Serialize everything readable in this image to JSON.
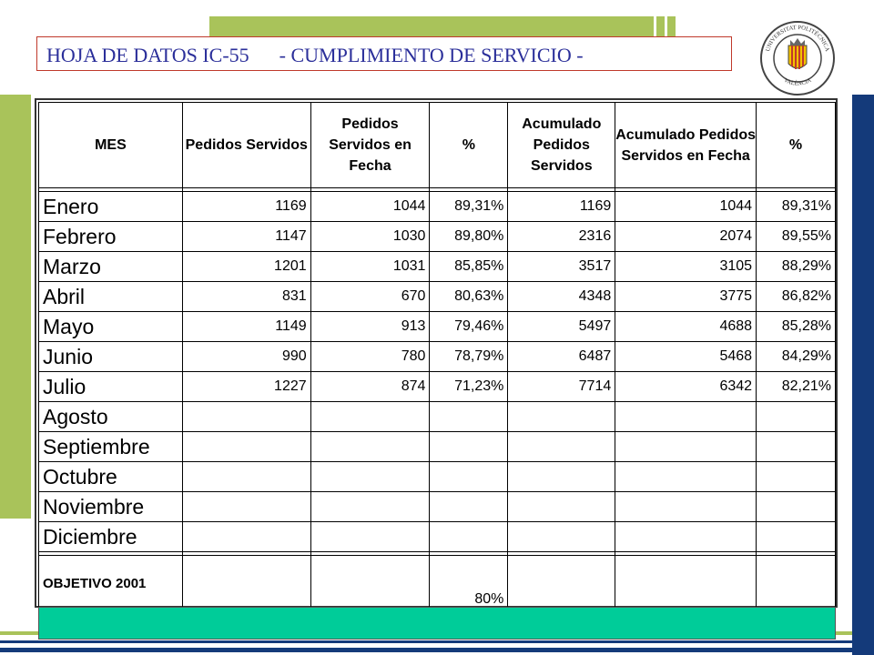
{
  "title": "HOJA DE DATOS IC-55      - CUMPLIMIENTO DE SERVICIO -",
  "logo": {
    "icon": "university-seal-icon",
    "text_top": "UNIVERSITAT POLITÈCNICA",
    "text_bottom": "VALÈNCIA"
  },
  "colors": {
    "accent_green": "#a9c35a",
    "navy": "#143a7a",
    "footer_teal": "#00cc99",
    "title_text": "#2b2f9a",
    "title_border": "#c0392b"
  },
  "table": {
    "headers": {
      "mes": "MES",
      "pedidos_servidos": "Pedidos Servidos",
      "pedidos_fecha": "Pedidos Servidos en Fecha",
      "pct": "%",
      "acum_servidos": "Acumulado Pedidos Servidos",
      "acum_fecha": "Acumulado Pedidos Servidos en Fecha",
      "pct_acum": "%"
    },
    "rows": [
      {
        "mes": "Enero",
        "servidos": "1169",
        "fecha": "1044",
        "pct": "89,31%",
        "acum_servidos": "1169",
        "acum_fecha": "1044",
        "pct_acum": "89,31%"
      },
      {
        "mes": "Febrero",
        "servidos": "1147",
        "fecha": "1030",
        "pct": "89,80%",
        "acum_servidos": "2316",
        "acum_fecha": "2074",
        "pct_acum": "89,55%"
      },
      {
        "mes": "Marzo",
        "servidos": "1201",
        "fecha": "1031",
        "pct": "85,85%",
        "acum_servidos": "3517",
        "acum_fecha": "3105",
        "pct_acum": "88,29%"
      },
      {
        "mes": "Abril",
        "servidos": "831",
        "fecha": "670",
        "pct": "80,63%",
        "acum_servidos": "4348",
        "acum_fecha": "3775",
        "pct_acum": "86,82%"
      },
      {
        "mes": "Mayo",
        "servidos": "1149",
        "fecha": "913",
        "pct": "79,46%",
        "acum_servidos": "5497",
        "acum_fecha": "4688",
        "pct_acum": "85,28%"
      },
      {
        "mes": "Junio",
        "servidos": "990",
        "fecha": "780",
        "pct": "78,79%",
        "acum_servidos": "6487",
        "acum_fecha": "5468",
        "pct_acum": "84,29%"
      },
      {
        "mes": "Julio",
        "servidos": "1227",
        "fecha": "874",
        "pct": "71,23%",
        "acum_servidos": "7714",
        "acum_fecha": "6342",
        "pct_acum": "82,21%"
      },
      {
        "mes": "Agosto",
        "servidos": "",
        "fecha": "",
        "pct": "",
        "acum_servidos": "",
        "acum_fecha": "",
        "pct_acum": ""
      },
      {
        "mes": "Septiembre",
        "servidos": "",
        "fecha": "",
        "pct": "",
        "acum_servidos": "",
        "acum_fecha": "",
        "pct_acum": ""
      },
      {
        "mes": "Octubre",
        "servidos": "",
        "fecha": "",
        "pct": "",
        "acum_servidos": "",
        "acum_fecha": "",
        "pct_acum": ""
      },
      {
        "mes": "Noviembre",
        "servidos": "",
        "fecha": "",
        "pct": "",
        "acum_servidos": "",
        "acum_fecha": "",
        "pct_acum": ""
      },
      {
        "mes": "Diciembre",
        "servidos": "",
        "fecha": "",
        "pct": "",
        "acum_servidos": "",
        "acum_fecha": "",
        "pct_acum": ""
      }
    ],
    "objetivo": {
      "label": "OBJETIVO 2001",
      "pct": "80%"
    }
  }
}
